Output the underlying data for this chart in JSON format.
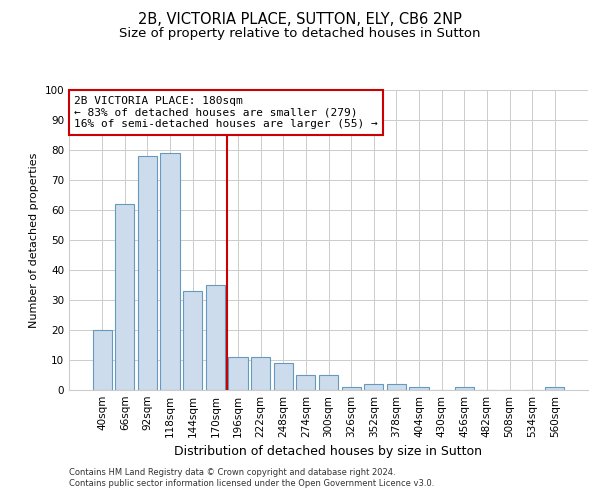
{
  "title1": "2B, VICTORIA PLACE, SUTTON, ELY, CB6 2NP",
  "title2": "Size of property relative to detached houses in Sutton",
  "xlabel": "Distribution of detached houses by size in Sutton",
  "ylabel": "Number of detached properties",
  "categories": [
    "40sqm",
    "66sqm",
    "92sqm",
    "118sqm",
    "144sqm",
    "170sqm",
    "196sqm",
    "222sqm",
    "248sqm",
    "274sqm",
    "300sqm",
    "326sqm",
    "352sqm",
    "378sqm",
    "404sqm",
    "430sqm",
    "456sqm",
    "482sqm",
    "508sqm",
    "534sqm",
    "560sqm"
  ],
  "values": [
    20,
    62,
    78,
    79,
    33,
    35,
    11,
    11,
    9,
    5,
    5,
    1,
    2,
    2,
    1,
    0,
    1,
    0,
    0,
    0,
    1
  ],
  "bar_color": "#ccdcec",
  "bar_edge_color": "#6699bb",
  "red_line_x": 5.5,
  "annotation_line1": "2B VICTORIA PLACE: 180sqm",
  "annotation_line2": "← 83% of detached houses are smaller (279)",
  "annotation_line3": "16% of semi-detached houses are larger (55) →",
  "annotation_box_color": "white",
  "annotation_box_edge_color": "#cc0000",
  "vline_color": "#cc0000",
  "ylim": [
    0,
    100
  ],
  "yticks": [
    0,
    10,
    20,
    30,
    40,
    50,
    60,
    70,
    80,
    90,
    100
  ],
  "grid_color": "#cccccc",
  "background_color": "white",
  "footer_text": "Contains HM Land Registry data © Crown copyright and database right 2024.\nContains public sector information licensed under the Open Government Licence v3.0.",
  "title1_fontsize": 10.5,
  "title2_fontsize": 9.5,
  "xlabel_fontsize": 9,
  "ylabel_fontsize": 8,
  "tick_fontsize": 7.5,
  "annotation_fontsize": 8,
  "footer_fontsize": 6
}
